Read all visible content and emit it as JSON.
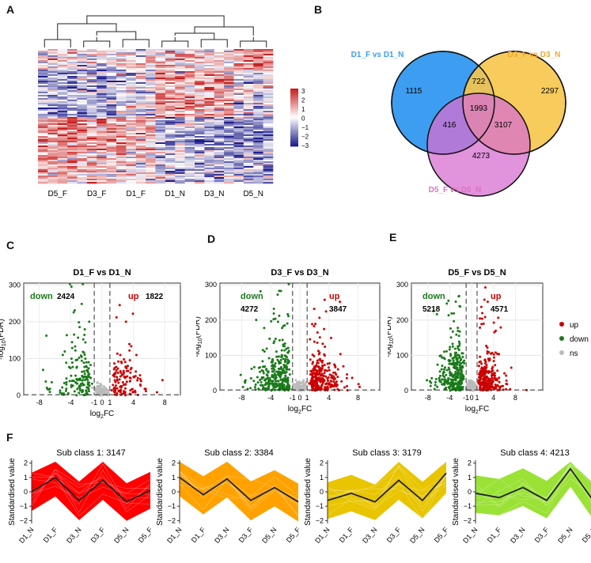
{
  "panels": {
    "A": "A",
    "B": "B",
    "C": "C",
    "D": "D",
    "E": "E",
    "F": "F"
  },
  "colors": {
    "up": "#cc0000",
    "down": "#1a7a1a",
    "ns": "#bbbbbb",
    "hm_high": "#c81e1e",
    "hm_low": "#1e1e8c",
    "venn1": "#3d9df0",
    "venn2": "#f7c64a",
    "venn3": "#d76fd0",
    "title1": "#3d9df0",
    "title2": "#f0a830",
    "title3": "#e070c0",
    "sub1": "#ff0000",
    "sub2": "#ffa200",
    "sub3": "#e8c500",
    "sub4": "#9ae236"
  },
  "heatmap": {
    "columns": [
      "D5_F",
      "D3_F",
      "D1_F",
      "D1_N",
      "D3_N",
      "D5_N"
    ],
    "colorbar_ticks": [
      "3",
      "2",
      "1",
      "0",
      "−1",
      "−2",
      "−3"
    ]
  },
  "venn": {
    "set1": "D1_F  vs  D1_N",
    "set2": "D3_F  vs  D3_N",
    "set3": "D5_F  vs  D5_N",
    "only1": "1115",
    "only2": "2297",
    "only3": "4273",
    "s12": "722",
    "s13": "416",
    "s23": "3107",
    "s123": "1993"
  },
  "chart_data": [
    {
      "type": "scatter",
      "panel": "C",
      "title": "D1_F  vs  D1_N",
      "xlabel": "log2FC",
      "ylabel": "-log10(FDR)",
      "xticks": [
        -8,
        -4,
        -1,
        0,
        1,
        4,
        8
      ],
      "yticks": [
        0,
        100,
        200,
        300
      ],
      "xlim": [
        -10,
        10
      ],
      "ylim": [
        0,
        305
      ],
      "down": {
        "label": "down",
        "count": "2424"
      },
      "up": {
        "label": "up",
        "count": "1822"
      }
    },
    {
      "type": "scatter",
      "panel": "D",
      "title": "D3_F  vs  D3_N",
      "xlabel": "log2FC",
      "ylabel": "-log10(FDR)",
      "xticks": [
        -8,
        -4,
        -1,
        0,
        1,
        4,
        8
      ],
      "yticks": [
        0,
        100,
        200,
        300
      ],
      "xlim": [
        -11,
        11
      ],
      "ylim": [
        0,
        305
      ],
      "down": {
        "label": "down",
        "count": "4272"
      },
      "up": {
        "label": "up",
        "count": "3847"
      }
    },
    {
      "type": "scatter",
      "panel": "E",
      "title": "D5_F  vs  D5_N",
      "xlabel": "log2FC",
      "ylabel": "-log10(FDR)",
      "xticks": [
        -8,
        -4,
        -1,
        0,
        1,
        4,
        8
      ],
      "yticks": [
        0,
        100,
        200,
        300
      ],
      "xlim": [
        -11,
        13
      ],
      "ylim": [
        0,
        305
      ],
      "down": {
        "label": "down",
        "count": "5218"
      },
      "up": {
        "label": "up",
        "count": "4571"
      }
    },
    {
      "type": "line",
      "panel": "F",
      "categories": [
        "D1_N",
        "D1_F",
        "D3_N",
        "D3_F",
        "D5_N",
        "D5_F"
      ],
      "ylabel": "Standardised value",
      "yticks": [
        -2,
        -1,
        0,
        1,
        2
      ],
      "ylim": [
        -2.2,
        2.2
      ],
      "series": [
        {
          "name": "Sub class 1: 3147",
          "values": [
            0,
            1,
            -0.6,
            0.8,
            -0.7,
            0.1
          ]
        },
        {
          "name": "Sub class 2: 3384",
          "values": [
            1,
            -0.2,
            0.9,
            -0.6,
            0.3,
            -0.7
          ]
        },
        {
          "name": "Sub class 3: 3179",
          "values": [
            -0.6,
            -0.1,
            -0.7,
            0.8,
            -0.6,
            1.3
          ]
        },
        {
          "name": "Sub class 4: 4213",
          "values": [
            -0.1,
            -0.4,
            0.3,
            -0.6,
            1.6,
            -0.7
          ]
        }
      ]
    }
  ],
  "legend": {
    "up": "up",
    "down": "down",
    "ns": "ns"
  }
}
